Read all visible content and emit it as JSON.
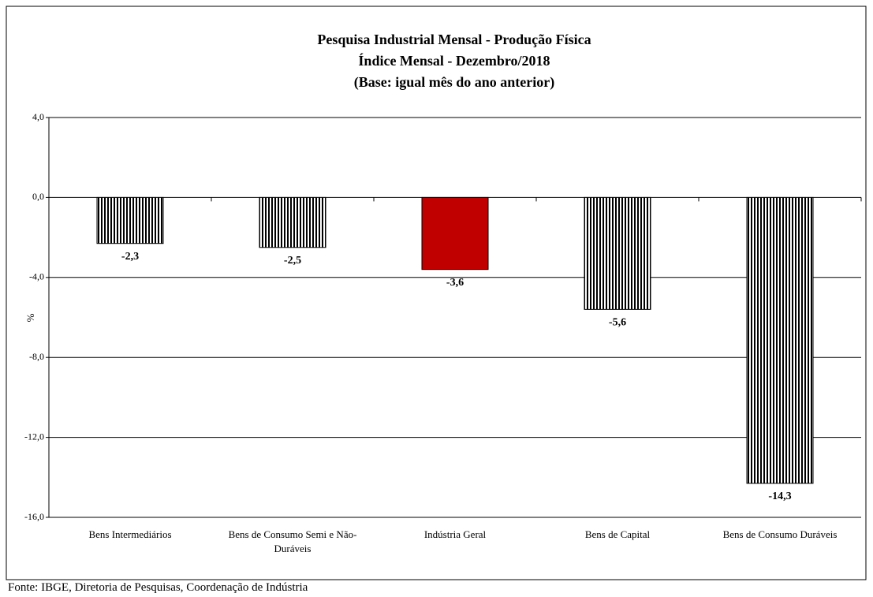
{
  "chart_data": {
    "type": "bar",
    "title": "Pesquisa Industrial Mensal - Produção Física",
    "subtitle": "Índice Mensal - Dezembro/2018",
    "subtitle2": "(Base: igual mês do ano anterior)",
    "y_label": "%",
    "categories": [
      "Bens Intermediários",
      "Bens de Consumo Semi e Não-Duráveis",
      "Indústria Geral",
      "Bens de Capital",
      "Bens de Consumo Duráveis"
    ],
    "values": [
      -2.3,
      -2.5,
      -3.6,
      -5.6,
      -14.3
    ],
    "value_labels": [
      "-2,3",
      "-2,5",
      "-3,6",
      "-5,6",
      "-14,3"
    ],
    "colors": [
      "#4f7fc0",
      "#4f7fc0",
      "#c00000",
      "#4f7fc0",
      "#4f7fc0"
    ],
    "patterns": [
      "stripes",
      "stripes",
      "solid",
      "stripes",
      "stripes"
    ],
    "ylim": [
      -16,
      4
    ],
    "yticks": [
      {
        "value": 4,
        "label": "4,0"
      },
      {
        "value": 0,
        "label": "0,0"
      },
      {
        "value": -4,
        "label": "-4,0"
      },
      {
        "value": -8,
        "label": "-8,0"
      },
      {
        "value": -12,
        "label": "-12,0"
      },
      {
        "value": -16,
        "label": "-16,0"
      }
    ],
    "grid": true,
    "source": "Fonte: IBGE, Diretoria de Pesquisas, Coordenação de Indústria"
  }
}
